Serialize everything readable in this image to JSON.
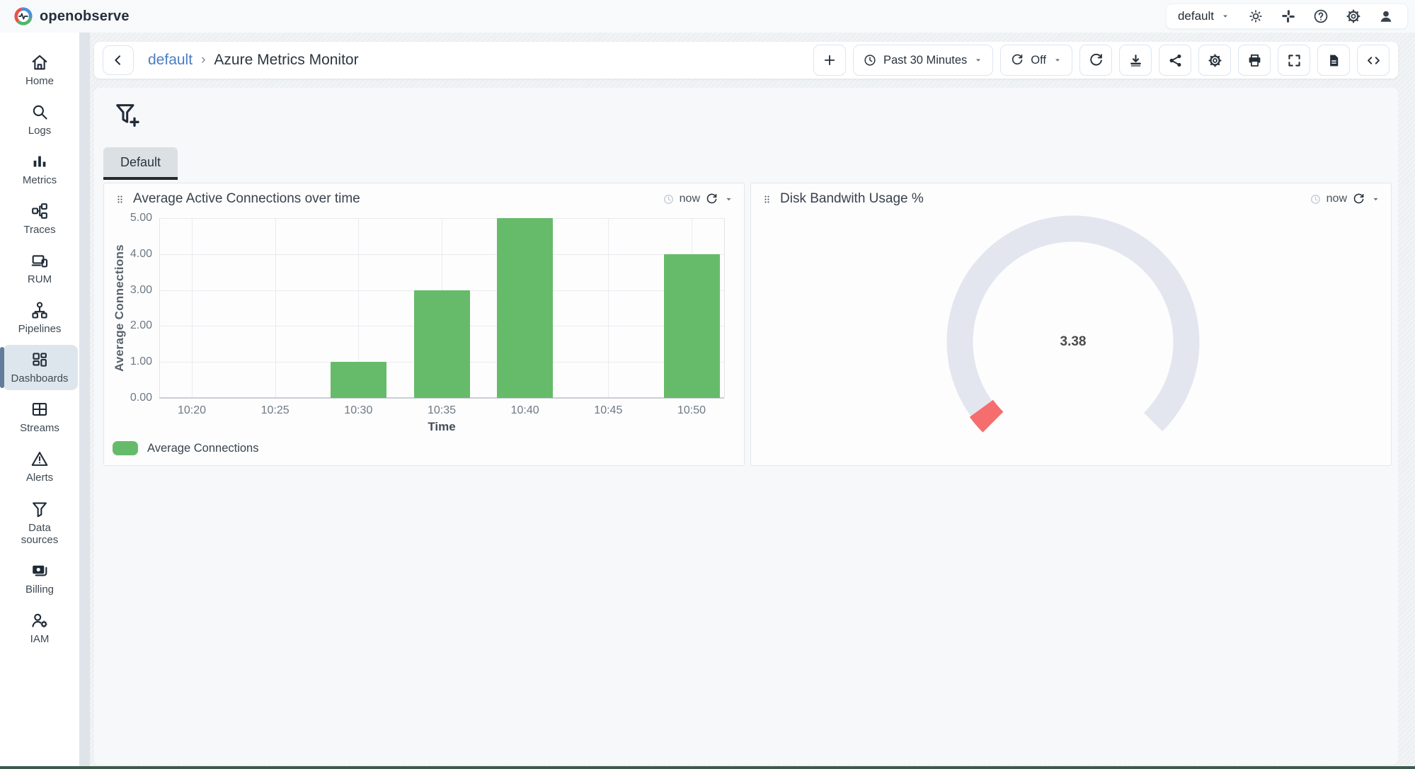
{
  "topbar": {
    "brand": "openobserve",
    "org": "default",
    "icons": [
      {
        "name": "theme-light",
        "label": "theme-toggle"
      },
      {
        "name": "slack",
        "label": "slack"
      },
      {
        "name": "help",
        "label": "help"
      },
      {
        "name": "gear",
        "label": "settings"
      },
      {
        "name": "user",
        "label": "profile"
      }
    ]
  },
  "sidebar": {
    "items": [
      {
        "label": "Home",
        "icon": "home"
      },
      {
        "label": "Logs",
        "icon": "search"
      },
      {
        "label": "Metrics",
        "icon": "metrics"
      },
      {
        "label": "Traces",
        "icon": "traces"
      },
      {
        "label": "RUM",
        "icon": "rum"
      },
      {
        "label": "Pipelines",
        "icon": "pipelines"
      },
      {
        "label": "Dashboards",
        "icon": "dashboards",
        "active": true
      },
      {
        "label": "Streams",
        "icon": "streams"
      },
      {
        "label": "Alerts",
        "icon": "alerts"
      },
      {
        "label": "Data sources",
        "icon": "funnel"
      },
      {
        "label": "Billing",
        "icon": "billing"
      },
      {
        "label": "IAM",
        "icon": "iam"
      }
    ]
  },
  "header": {
    "breadcrumb_org": "default",
    "breadcrumb_separator": "›",
    "title": "Azure Metrics Monitor",
    "add_button": "+",
    "time_range": "Past 30 Minutes",
    "auto_refresh": "Off",
    "action_icons": [
      {
        "name": "refresh"
      },
      {
        "name": "download"
      },
      {
        "name": "share"
      },
      {
        "name": "gear"
      },
      {
        "name": "print"
      },
      {
        "name": "fullscreen"
      },
      {
        "name": "doc"
      },
      {
        "name": "code"
      }
    ]
  },
  "tab_bar": {
    "tabs": [
      {
        "label": "Default",
        "active": true
      }
    ]
  },
  "panels": [
    {
      "title": "Average Active Connections over time",
      "refresh_at": "now"
    },
    {
      "title": "Disk Bandwith Usage %",
      "refresh_at": "now"
    }
  ],
  "chart_data": [
    {
      "type": "bar",
      "title": "Average Active Connections over time",
      "xlabel": "Time",
      "ylabel": "Average Connections",
      "categories": [
        "10:20",
        "10:25",
        "10:30",
        "10:35",
        "10:40",
        "10:45",
        "10:50"
      ],
      "series": [
        {
          "name": "Average Connections",
          "values": [
            null,
            null,
            1,
            3,
            5,
            null,
            4
          ]
        }
      ],
      "ylim": [
        0,
        5
      ],
      "yticks": [
        "0.00",
        "1.00",
        "2.00",
        "3.00",
        "4.00",
        "5.00"
      ],
      "bar_color": "#66bb6a",
      "grid": true,
      "legend_position": "bottom-left"
    },
    {
      "type": "gauge",
      "title": "Disk Bandwith Usage %",
      "value": 3.38,
      "label": "3.38",
      "min": 0,
      "max": 100,
      "start_angle": 225,
      "end_angle": -45,
      "track_color": "#e3e6ef",
      "fill_color": "#f56d6d"
    }
  ],
  "colors": {
    "accent_blue": "#4b7cc3",
    "bar_green": "#66bb6a",
    "gauge_red": "#f56d6d",
    "active_nav_bg": "#dde6ec",
    "active_nav_indicator": "#617d9b",
    "bottom_edge": "#3e5a4b"
  }
}
